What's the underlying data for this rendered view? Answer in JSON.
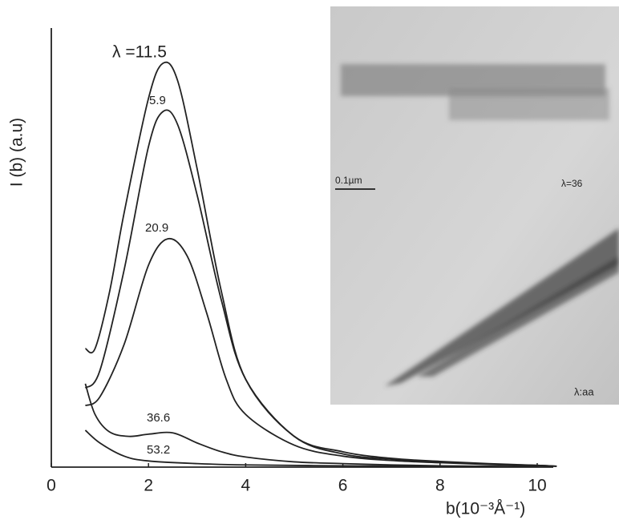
{
  "chart_data": {
    "type": "line",
    "xlabel": "b(10⁻³Å⁻¹)",
    "ylabel": "I (b) (a.u)",
    "xlim": [
      0,
      10.5
    ],
    "xticks": [
      0,
      2,
      4,
      6,
      8,
      10
    ],
    "ylim": [
      0,
      100
    ],
    "color": "#222222",
    "series": [
      {
        "name": "λ =11.5",
        "x": [
          0.7,
          0.9,
          1.2,
          1.5,
          2.0,
          2.3,
          2.6,
          3.0,
          3.5,
          4.0,
          5.0,
          6.0,
          7.0,
          8.0,
          9.0,
          10.0,
          10.4
        ],
        "values": [
          27,
          27,
          40,
          58,
          84,
          92,
          88,
          68,
          40,
          20,
          7,
          3.5,
          2,
          1.3,
          0.8,
          0.4,
          0.2
        ]
      },
      {
        "name": "5.9",
        "x": [
          0.7,
          1.0,
          1.5,
          2.0,
          2.3,
          2.6,
          3.0,
          3.5,
          4.0,
          5.0,
          6.0,
          7.0,
          8.0,
          9.0,
          10.0,
          10.4
        ],
        "values": [
          18,
          22,
          45,
          73,
          81,
          78,
          62,
          38,
          20,
          7,
          3,
          1.8,
          1.2,
          0.7,
          0.4,
          0.2
        ]
      },
      {
        "name": "20.9",
        "x": [
          0.7,
          1.0,
          1.5,
          2.0,
          2.4,
          2.8,
          3.2,
          3.6,
          4.0,
          5.0,
          6.0,
          7.0,
          8.0,
          9.0,
          10.0,
          10.4
        ],
        "values": [
          14,
          16,
          28,
          46,
          52,
          48,
          35,
          20,
          12,
          5,
          2.5,
          1.5,
          1,
          0.6,
          0.3,
          0.2
        ]
      },
      {
        "name": "36.6",
        "x": [
          0.7,
          0.9,
          1.2,
          1.6,
          2.0,
          2.5,
          3.0,
          3.5,
          4.0,
          5.0,
          6.0,
          7.0,
          8.0,
          9.0,
          10.0
        ],
        "values": [
          19,
          12,
          8,
          7,
          7.5,
          7.8,
          5.5,
          3.5,
          2.3,
          1.2,
          0.8,
          0.5,
          0.3,
          0.2,
          0.1
        ]
      },
      {
        "name": "53.2",
        "x": [
          0.7,
          1.0,
          1.5,
          2.0,
          3.0,
          4.0,
          6.0,
          8.0,
          10.0
        ],
        "values": [
          8.4,
          5.5,
          2.5,
          1.4,
          0.8,
          0.5,
          0.3,
          0.2,
          0.1
        ]
      }
    ],
    "inset": {
      "labels": [
        "0.1µm",
        "λ=36",
        "λ:aa"
      ]
    }
  }
}
